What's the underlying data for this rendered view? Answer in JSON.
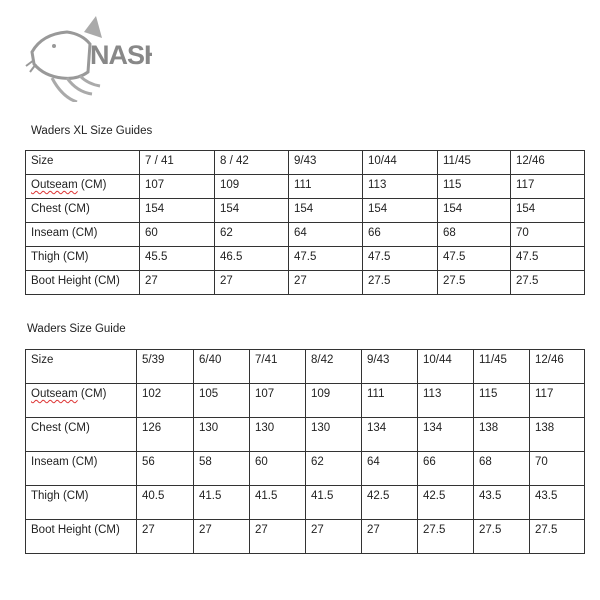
{
  "logo": {
    "text": "NASH",
    "icon": "carp-fish-icon"
  },
  "xl_guide": {
    "title": "Waders XL Size Guides",
    "header": [
      "Size",
      "7 / 41",
      "8 / 42",
      "9/43",
      "10/44",
      "11/45",
      "12/46"
    ],
    "rows": [
      [
        "Outseam (CM)",
        "107",
        "109",
        "111",
        "113",
        "115",
        "117"
      ],
      [
        "Chest (CM)",
        "154",
        "154",
        "154",
        "154",
        "154",
        "154"
      ],
      [
        "Inseam (CM)",
        "60",
        "62",
        "64",
        "66",
        "68",
        "70"
      ],
      [
        "Thigh (CM)",
        "45.5",
        "46.5",
        "47.5",
        "47.5",
        "47.5",
        "47.5"
      ],
      [
        "Boot Height (CM)",
        "27",
        "27",
        "27",
        "27.5",
        "27.5",
        "27.5"
      ]
    ]
  },
  "std_guide": {
    "title": "Waders Size Guide",
    "header": [
      "Size",
      "5/39",
      "6/40",
      "7/41",
      "8/42",
      "9/43",
      "10/44",
      "11/45",
      "12/46"
    ],
    "rows": [
      [
        "Outseam (CM)",
        "102",
        "105",
        "107",
        "109",
        "111",
        "113",
        "115",
        "117"
      ],
      [
        "Chest (CM)",
        "126",
        "130",
        "130",
        "130",
        "134",
        "134",
        "138",
        "138"
      ],
      [
        "Inseam (CM)",
        "56",
        "58",
        "60",
        "62",
        "64",
        "66",
        "68",
        "70"
      ],
      [
        "Thigh (CM)",
        "40.5",
        "41.5",
        "41.5",
        "41.5",
        "42.5",
        "42.5",
        "43.5",
        "43.5"
      ],
      [
        "Boot Height (CM)",
        "27",
        "27",
        "27",
        "27",
        "27",
        "27.5",
        "27.5",
        "27.5"
      ]
    ]
  }
}
